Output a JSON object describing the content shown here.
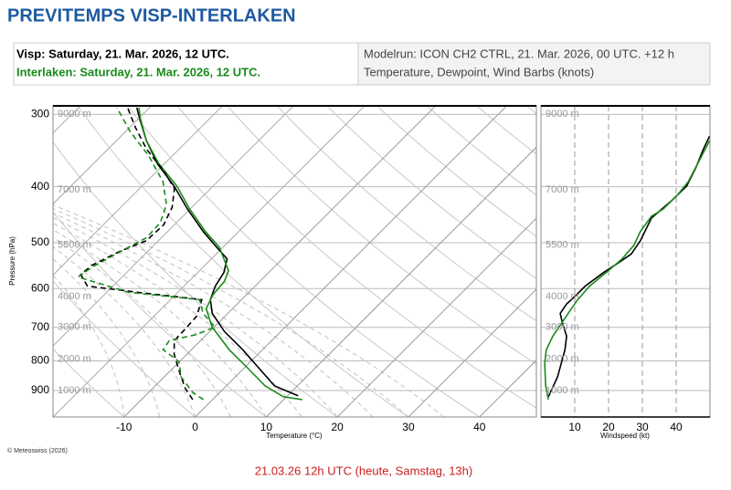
{
  "header": {
    "title": "PREVITEMPS VISP-INTERLAKEN",
    "station_1": "Visp: Saturday, 21. Mar. 2026, 12 UTC.",
    "station_2": "Interlaken: Saturday, 21. Mar. 2026, 12 UTC.",
    "model_run": "Modelrun: ICON CH2 CTRL, 21. Mar. 2026, 00 UTC. +12 h",
    "variables": "Temperature, Dewpoint, Wind Barbs (knots)"
  },
  "chart_data": [
    {
      "type": "skewt",
      "xlabel": "Temperature (°C)",
      "ylabel": "Pressure (hPa)",
      "log_y": true,
      "xlim": [
        -20,
        48
      ],
      "ylim": [
        1000,
        290
      ],
      "xticks": [
        -10,
        0,
        10,
        20,
        30,
        40
      ],
      "yticks": [
        300,
        400,
        500,
        600,
        700,
        800,
        900
      ],
      "height_ticks": [
        {
          "value": 300,
          "label": "9000 m"
        },
        {
          "value": 405,
          "label": "7000 m"
        },
        {
          "value": 505,
          "label": "5500 m"
        },
        {
          "value": 620,
          "label": "4000 m"
        },
        {
          "value": 700,
          "label": "3000 m"
        },
        {
          "value": 795,
          "label": "2000 m"
        },
        {
          "value": 900,
          "label": "1000 m"
        }
      ],
      "series": [
        {
          "color": "#000000",
          "dash": false,
          "y": [
            919,
            884,
            831,
            765,
            712,
            662,
            627,
            594,
            563,
            533,
            505,
            478,
            437,
            399,
            365,
            333,
            304,
            292
          ],
          "values": [
            11.5,
            6.8,
            2.7,
            -2.8,
            -7.9,
            -12.2,
            -14.4,
            -15.6,
            -16.3,
            -17.8,
            -21.4,
            -25.0,
            -30.4,
            -35.5,
            -41.0,
            -45.8,
            -50.0,
            -51.8
          ]
        },
        {
          "color": "#1a8a1a",
          "dash": false,
          "y": [
            933,
            923,
            884,
            822,
            765,
            699,
            650,
            616,
            583,
            559,
            509,
            478,
            437,
            399,
            365,
            333,
            304,
            292
          ],
          "values": [
            12.6,
            9.6,
            5.5,
            0.4,
            -4.7,
            -10.3,
            -13.7,
            -14.7,
            -15.0,
            -15.9,
            -20.5,
            -24.7,
            -30.1,
            -35.1,
            -40.8,
            -45.8,
            -49.9,
            -51.5
          ]
        },
        {
          "color": "#000000",
          "dash": true,
          "y": [
            933,
            893,
            837,
            779,
            738,
            704,
            669,
            627,
            609,
            594,
            567,
            547,
            518,
            496,
            466,
            434,
            403,
            375,
            345,
            316,
            292
          ],
          "values": [
            -2.8,
            -5.4,
            -8.5,
            -11.8,
            -13.7,
            -13.8,
            -14.0,
            -15.6,
            -25.6,
            -33.6,
            -36.2,
            -35.9,
            -34.0,
            -31.7,
            -31.5,
            -32.8,
            -35.1,
            -39.2,
            -44.5,
            -49.2,
            -53.1
          ]
        },
        {
          "color": "#1a8a1a",
          "dash": true,
          "y": [
            933,
            907,
            853,
            802,
            765,
            738,
            720,
            699,
            662,
            627,
            609,
            573,
            551,
            514,
            490,
            461,
            429,
            392,
            354,
            321,
            292
          ],
          "values": [
            -1.3,
            -3.8,
            -7.6,
            -10.1,
            -14.0,
            -14.4,
            -11.4,
            -9.9,
            -13.5,
            -15.9,
            -26.9,
            -36.2,
            -35.6,
            -33.6,
            -32.1,
            -32.3,
            -34.0,
            -37.7,
            -43.3,
            -49.4,
            -54.6
          ]
        }
      ]
    },
    {
      "type": "line",
      "xlabel": "Windspeed (kt)",
      "log_y": true,
      "xlim": [
        0,
        50
      ],
      "ylim": [
        1000,
        290
      ],
      "xticks": [
        10,
        20,
        30,
        40
      ],
      "series": [
        {
          "color": "#000000",
          "y": [
            923,
            853,
            808,
            765,
            725,
            686,
            662,
            638,
            616,
            594,
            563,
            543,
            523,
            496,
            453,
            421,
            399,
            371,
            345,
            327
          ],
          "values": [
            2.2,
            4.9,
            6.0,
            7.1,
            7.6,
            6.3,
            5.7,
            7.6,
            10.4,
            13.1,
            18.5,
            22.6,
            26.7,
            29.4,
            32.7,
            39.0,
            43.1,
            45.8,
            48.0,
            49.9
          ]
        },
        {
          "color": "#1a8a1a",
          "y": [
            933,
            884,
            808,
            765,
            725,
            686,
            650,
            627,
            594,
            559,
            533,
            505,
            478,
            450,
            437,
            414,
            392,
            358,
            333
          ],
          "values": [
            2.2,
            1.4,
            1.1,
            1.6,
            3.5,
            6.3,
            9.0,
            10.9,
            14.4,
            19.9,
            24.0,
            27.5,
            29.4,
            32.7,
            36.2,
            40.3,
            43.6,
            47.1,
            49.9
          ]
        }
      ]
    }
  ],
  "credit": "© Meteoswiss (2026)",
  "footer": "21.03.26 12h UTC (heute, Samstag, 13h)"
}
